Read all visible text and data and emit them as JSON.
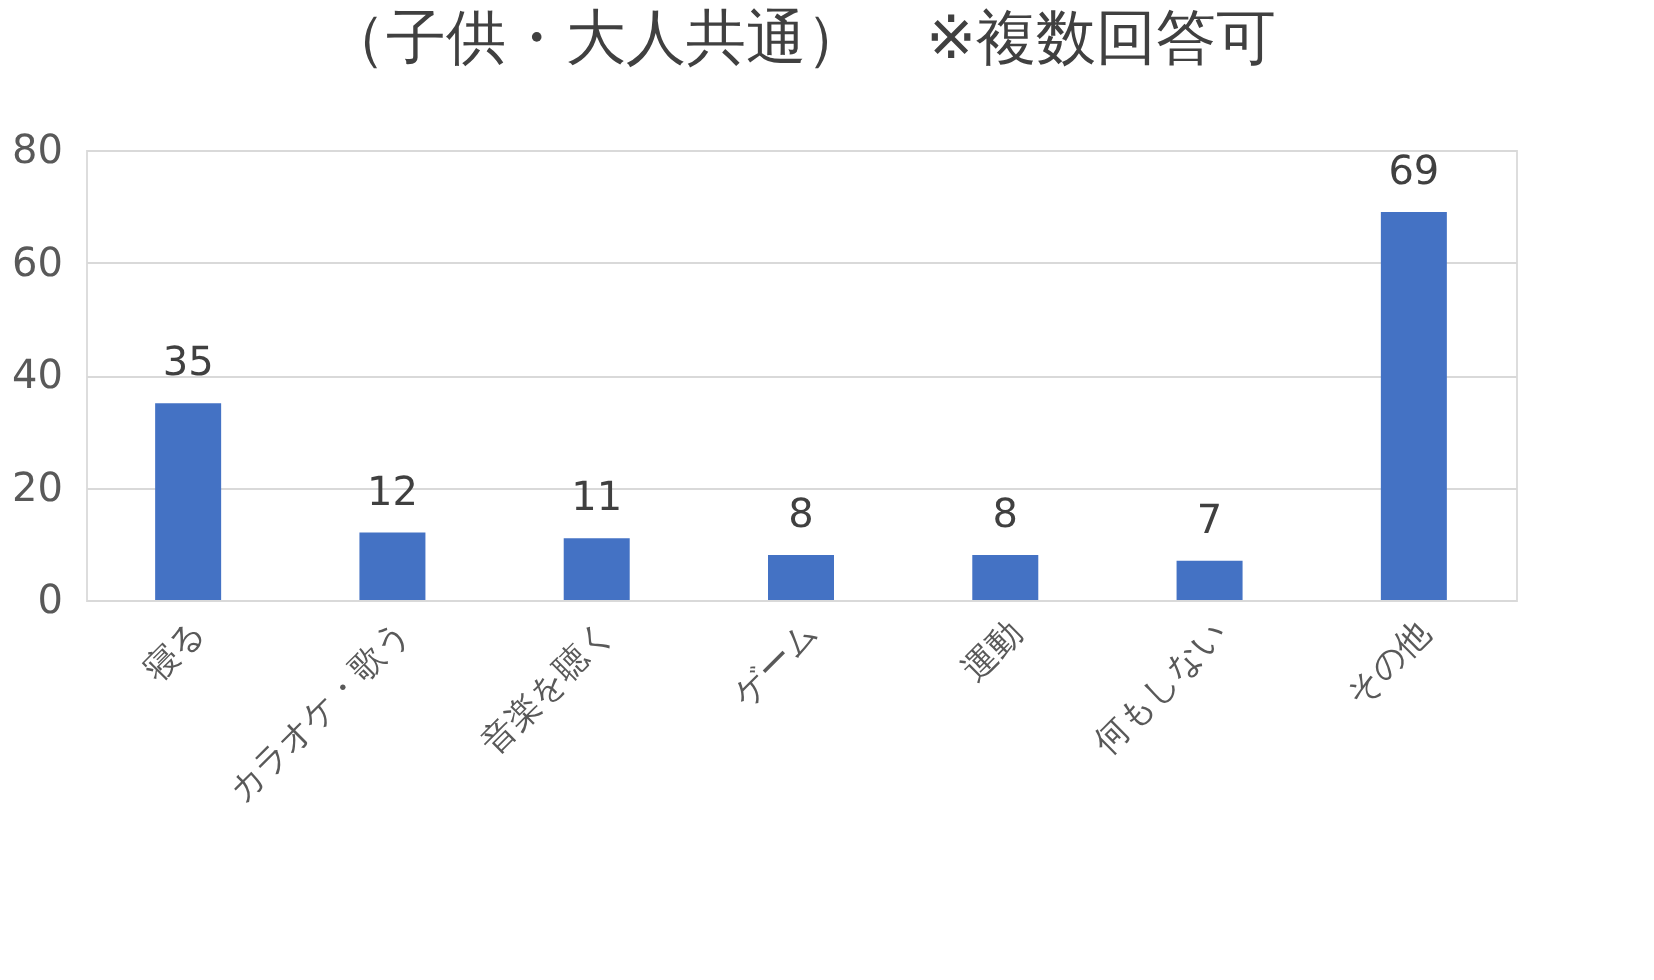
{
  "chart_data": {
    "type": "bar",
    "title": "（子供・大人共通）　※複数回答可",
    "categories": [
      "寝る",
      "カラオケ・歌う",
      "音楽を聴く",
      "ゲーム",
      "運動",
      "何もしない",
      "その他"
    ],
    "values": [
      35,
      12,
      11,
      8,
      8,
      7,
      69
    ],
    "color": "#4472c4",
    "ylim": [
      0,
      80
    ],
    "yticks": [
      0,
      20,
      40,
      60,
      80
    ],
    "grid": "y",
    "data_labels": true
  }
}
